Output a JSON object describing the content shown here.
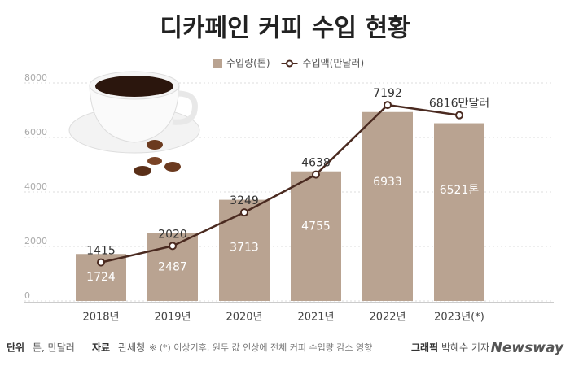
{
  "chart_data": {
    "type": "bar-line",
    "title": "디카페인 커피 수입 현황",
    "categories": [
      "2018년",
      "2019년",
      "2020년",
      "2021년",
      "2022년",
      "2023년(*)"
    ],
    "series": [
      {
        "name": "수입량(톤)",
        "type": "bar",
        "color": "#b9a391",
        "values": [
          1724,
          2487,
          3713,
          4755,
          6933,
          6521
        ],
        "value_labels": [
          "1724",
          "2487",
          "3713",
          "4755",
          "6933",
          "6521톤"
        ]
      },
      {
        "name": "수입액(만달러)",
        "type": "line",
        "color": "#4a2a20",
        "values": [
          1415,
          2020,
          3249,
          4638,
          7192,
          6816
        ],
        "value_labels": [
          "1415",
          "2020",
          "3249",
          "4638",
          "7192",
          "6816만달러"
        ]
      }
    ],
    "ylim": [
      0,
      8000
    ],
    "yticks": [
      0,
      2000,
      4000,
      6000,
      8000
    ],
    "grid": true,
    "footer": {
      "unit_label": "단위",
      "unit": "톤, 만달러",
      "source_label": "자료",
      "source": "관세청",
      "note": "※ (*) 이상기후, 원두 값 인상에 전체 커피 수입량 감소 영향",
      "graphic_label": "그래픽",
      "author": "박혜수 기자",
      "brand": "Newsway"
    }
  }
}
